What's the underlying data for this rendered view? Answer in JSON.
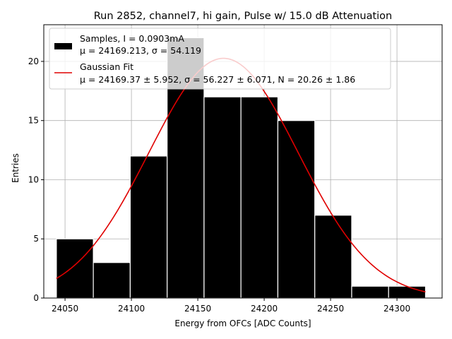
{
  "chart_data": {
    "type": "bar",
    "title": "Run 2852, channel7, hi gain, Pulse w/ 15.0 dB Attenuation",
    "xlabel": "Energy from OFCs [ADC Counts]",
    "ylabel": "Entries",
    "xlim": [
      24034,
      24334
    ],
    "ylim": [
      0,
      23.1
    ],
    "xticks": [
      24050,
      24100,
      24150,
      24200,
      24250,
      24300
    ],
    "yticks": [
      0,
      5,
      10,
      15,
      20
    ],
    "grid": true,
    "legend_position": "upper left",
    "histogram": {
      "name": "Samples, I = 0.0903mA",
      "stats_label": "μ = 24169.213, σ = 54.119",
      "color": "#000000",
      "bin_edges": [
        24043.5,
        24071.3,
        24099.1,
        24126.9,
        24154.7,
        24182.5,
        24210.3,
        24238.1,
        24265.9,
        24293.7,
        24321.5
      ],
      "counts": [
        5,
        3,
        12,
        22,
        17,
        17,
        15,
        7,
        1,
        1
      ]
    },
    "fit": {
      "name": "Gaussian Fit",
      "params_label": "μ = 24169.37 ± 5.952, σ = 56.227 ± 6.071, N = 20.26 ± 1.86",
      "color": "#e00000",
      "mu": 24169.37,
      "sigma": 56.227,
      "N": 20.26,
      "x_range": [
        24043.5,
        24321.5
      ]
    }
  }
}
